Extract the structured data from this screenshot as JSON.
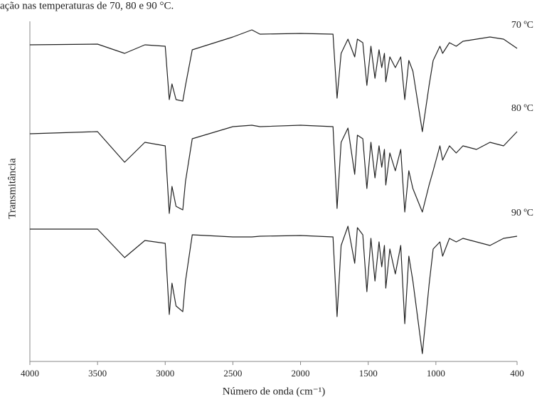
{
  "chart_data": {
    "type": "line",
    "title": "ação nas temperaturas de 70, 80 e 90 °C.",
    "x_label": "Número de onda (cm⁻¹)",
    "y_label": "Transmitância",
    "x": [
      4000,
      3500,
      3300,
      3150,
      3000,
      2970,
      2950,
      2920,
      2870,
      2850,
      2800,
      2500,
      2360,
      2300,
      2000,
      1760,
      1730,
      1700,
      1650,
      1600,
      1580,
      1540,
      1510,
      1480,
      1450,
      1420,
      1400,
      1380,
      1370,
      1340,
      1300,
      1260,
      1230,
      1200,
      1170,
      1100,
      1050,
      1020,
      970,
      950,
      900,
      850,
      800,
      700,
      600,
      500,
      400
    ],
    "series": [
      {
        "name": "70 ºC",
        "color": "#222222",
        "values": [
          89,
          89.2,
          86.6,
          89,
          88.6,
          73.6,
          78,
          73.6,
          73.2,
          77.6,
          87.6,
          91.2,
          93.2,
          92,
          92.2,
          92,
          74,
          86.6,
          90.6,
          85.6,
          90.6,
          89.6,
          77.6,
          88.6,
          79.6,
          87.6,
          82.6,
          86.6,
          78.6,
          85.6,
          82.6,
          85.6,
          73.6,
          84.6,
          81.6,
          64.6,
          77.6,
          84.6,
          88.6,
          86.6,
          89.6,
          88.6,
          90,
          90.6,
          91.2,
          90.6,
          88
        ]
      },
      {
        "name": "80 ºC",
        "color": "#222222",
        "values": [
          64,
          64.6,
          56,
          61.6,
          60.6,
          41.6,
          49.2,
          43.6,
          42.6,
          50.6,
          62.6,
          66,
          66.4,
          66,
          66.4,
          66,
          43,
          61.6,
          65.6,
          52.6,
          63.6,
          62.6,
          48.6,
          61.6,
          51.6,
          60.6,
          54.6,
          59.6,
          49.6,
          58.6,
          53.6,
          59.6,
          42,
          53.6,
          48.6,
          42,
          49.6,
          53.6,
          60.6,
          56.6,
          60.6,
          58.6,
          60.6,
          59.6,
          61.6,
          60.6,
          64.6
        ]
      },
      {
        "name": "90 ºC",
        "color": "#222222",
        "values": [
          37.2,
          37.2,
          29.2,
          34,
          33.2,
          13.2,
          22,
          15.6,
          14,
          22.6,
          35.6,
          35,
          35,
          35.2,
          35.4,
          35,
          12.6,
          32.6,
          38,
          27.6,
          37.6,
          35.6,
          19.6,
          34.6,
          22.6,
          33.6,
          26.6,
          32.6,
          20.6,
          31.6,
          24.6,
          32.6,
          10.6,
          29.6,
          22.6,
          2.2,
          21.6,
          31.6,
          33.6,
          29.6,
          34.6,
          33.6,
          34.6,
          33.6,
          32.6,
          34.6,
          35.2
        ]
      }
    ],
    "xlim": [
      4000,
      400
    ],
    "xticks": [
      4000,
      3500,
      3000,
      2500,
      2000,
      1500,
      1000,
      400
    ],
    "ylim": [
      0,
      100
    ],
    "grid": false
  }
}
